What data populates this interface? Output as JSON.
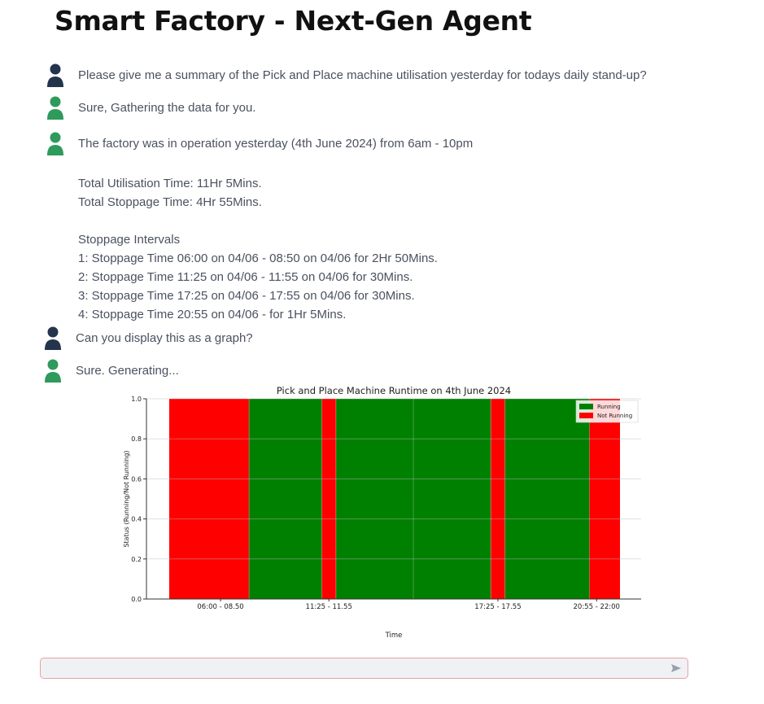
{
  "header": {
    "title": "Smart Factory - Next-Gen Agent"
  },
  "colors": {
    "user_avatar": "#24344d",
    "agent_avatar": "#2e9a5b",
    "running": "#008000",
    "not_running": "#ff0000"
  },
  "messages": [
    {
      "role": "user",
      "text": "Please give me a summary of the Pick and Place machine utilisation yesterday for todays daily stand-up?"
    },
    {
      "role": "assistant",
      "text": "Sure, Gathering the data for you."
    },
    {
      "role": "assistant",
      "text": "The factory was in operation yesterday (4th June 2024) from 6am - 10pm"
    },
    {
      "role": "user",
      "text": "Can you display this as a graph?"
    },
    {
      "role": "assistant",
      "text": "Sure. Generating..."
    }
  ],
  "summary": {
    "utilisation": "Total Utilisation Time: 11Hr 5Mins.",
    "stoppage": "Total Stoppage Time: 4Hr 55Mins.",
    "intervals_heading": "Stoppage Intervals",
    "intervals": [
      "1: Stoppage Time 06:00 on 04/06 - 08:50 on 04/06 for 2Hr 50Mins.",
      "2: Stoppage Time 11:25 on 04/06 - 11:55 on 04/06 for 30Mins.",
      "3: Stoppage Time 17:25 on 04/06 - 17:55 on 04/06 for 30Mins.",
      "4: Stoppage Time 20:55 on 04/06 - for 1Hr 5Mins."
    ]
  },
  "input": {
    "value": "",
    "placeholder": ""
  },
  "chart_data": {
    "type": "area",
    "title": "Pick and Place Machine Runtime on 4th June 2024",
    "xlabel": "Time",
    "ylabel": "Status (Running/Not Running)",
    "ylim": [
      0,
      1.0
    ],
    "xlim": [
      "06:00",
      "22:00"
    ],
    "yticks": [
      "0.0",
      "0.2",
      "0.4",
      "0.6",
      "0.8",
      "1.0"
    ],
    "xticks": [
      "06:00 - 08.50",
      "11:25 - 11.55",
      "17:25 - 17.55",
      "20:55 - 22:00"
    ],
    "grid": true,
    "legend_position": "top-right",
    "series": [
      {
        "name": "Running",
        "color": "#008000",
        "intervals": [
          [
            "08:50",
            "11:25"
          ],
          [
            "11:55",
            "17:25"
          ],
          [
            "17:55",
            "20:55"
          ]
        ]
      },
      {
        "name": "Not Running",
        "color": "#ff0000",
        "intervals": [
          [
            "06:00",
            "08:50"
          ],
          [
            "11:25",
            "11:55"
          ],
          [
            "17:25",
            "17:55"
          ],
          [
            "20:55",
            "22:00"
          ]
        ]
      }
    ]
  }
}
